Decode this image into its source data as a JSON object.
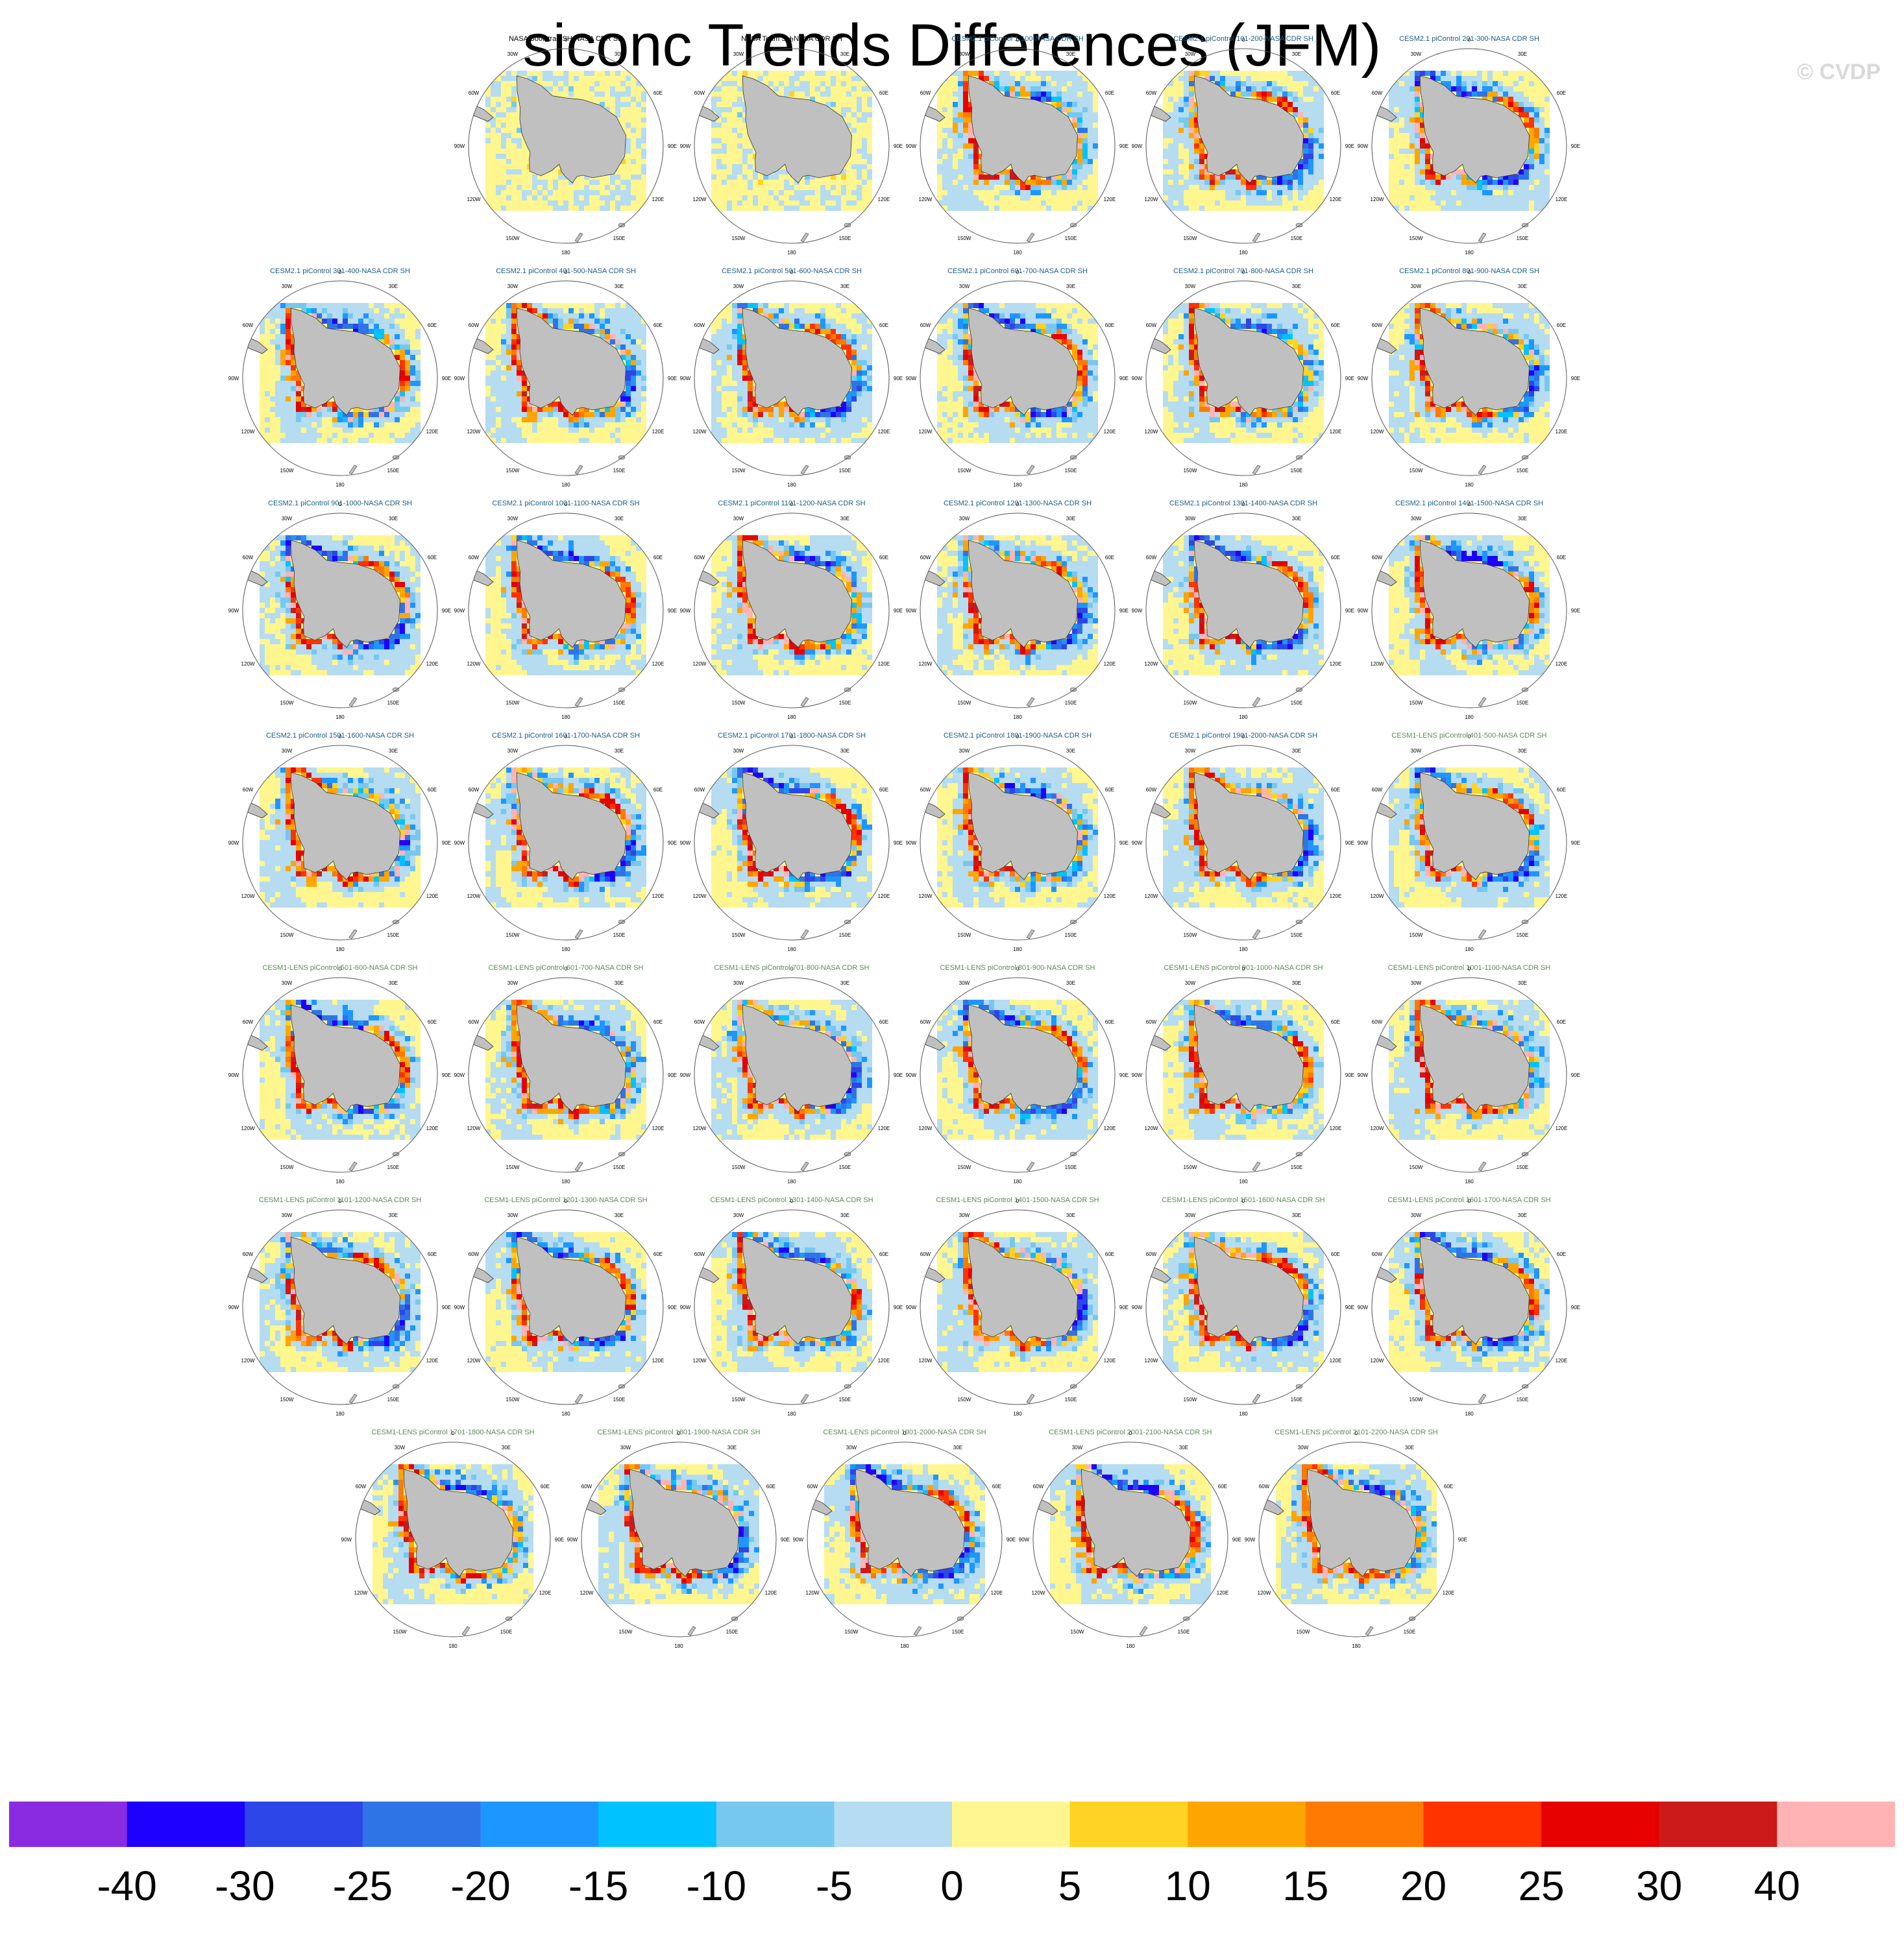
{
  "chart_data": {
    "type": "heatmap",
    "title": "siconc Trends Differences (JFM)",
    "watermark": "© CVDP",
    "map_labels": {
      "lon_ticks": [
        "0",
        "30E",
        "60E",
        "90E",
        "120E",
        "150E",
        "180",
        "150W",
        "120W",
        "90W",
        "60W",
        "30W"
      ]
    },
    "colors": {
      "land": "#c0c0c0",
      "ocean_zero": "#fff68f",
      "title_obs": "#000000",
      "title_cesm2": "#1b5e86",
      "title_cesm1": "#5b8a57"
    },
    "panels": [
      {
        "title": "NASA Bootstrap SH-NASA CDR SH",
        "group": "obs"
      },
      {
        "title": "NASA Team SH-NASA CDR SH",
        "group": "obs"
      },
      {
        "title": "CESM2.1 piControl 1-100-NASA CDR SH",
        "group": "cesm2"
      },
      {
        "title": "CESM2.1 piControl 101-200-NASA CDR SH",
        "group": "cesm2"
      },
      {
        "title": "CESM2.1 piControl 201-300-NASA CDR SH",
        "group": "cesm2"
      },
      {
        "title": "CESM2.1 piControl 301-400-NASA CDR SH",
        "group": "cesm2"
      },
      {
        "title": "CESM2.1 piControl 401-500-NASA CDR SH",
        "group": "cesm2"
      },
      {
        "title": "CESM2.1 piControl 501-600-NASA CDR SH",
        "group": "cesm2"
      },
      {
        "title": "CESM2.1 piControl 601-700-NASA CDR SH",
        "group": "cesm2"
      },
      {
        "title": "CESM2.1 piControl 701-800-NASA CDR SH",
        "group": "cesm2"
      },
      {
        "title": "CESM2.1 piControl 801-900-NASA CDR SH",
        "group": "cesm2"
      },
      {
        "title": "CESM2.1 piControl 901-1000-NASA CDR SH",
        "group": "cesm2"
      },
      {
        "title": "CESM2.1 piControl 1001-1100-NASA CDR SH",
        "group": "cesm2"
      },
      {
        "title": "CESM2.1 piControl 1101-1200-NASA CDR SH",
        "group": "cesm2"
      },
      {
        "title": "CESM2.1 piControl 1201-1300-NASA CDR SH",
        "group": "cesm2"
      },
      {
        "title": "CESM2.1 piControl 1301-1400-NASA CDR SH",
        "group": "cesm2"
      },
      {
        "title": "CESM2.1 piControl 1401-1500-NASA CDR SH",
        "group": "cesm2"
      },
      {
        "title": "CESM2.1 piControl 1501-1600-NASA CDR SH",
        "group": "cesm2"
      },
      {
        "title": "CESM2.1 piControl 1601-1700-NASA CDR SH",
        "group": "cesm2"
      },
      {
        "title": "CESM2.1 piControl 1701-1800-NASA CDR SH",
        "group": "cesm2"
      },
      {
        "title": "CESM2.1 piControl 1801-1900-NASA CDR SH",
        "group": "cesm2"
      },
      {
        "title": "CESM2.1 piControl 1901-2000-NASA CDR SH",
        "group": "cesm2"
      },
      {
        "title": "CESM1-LENS piControl 401-500-NASA CDR SH",
        "group": "cesm1"
      },
      {
        "title": "CESM1-LENS piControl 501-600-NASA CDR SH",
        "group": "cesm1"
      },
      {
        "title": "CESM1-LENS piControl 601-700-NASA CDR SH",
        "group": "cesm1"
      },
      {
        "title": "CESM1-LENS piControl 701-800-NASA CDR SH",
        "group": "cesm1"
      },
      {
        "title": "CESM1-LENS piControl 801-900-NASA CDR SH",
        "group": "cesm1"
      },
      {
        "title": "CESM1-LENS piControl 901-1000-NASA CDR SH",
        "group": "cesm1"
      },
      {
        "title": "CESM1-LENS piControl 1001-1100-NASA CDR SH",
        "group": "cesm1"
      },
      {
        "title": "CESM1-LENS piControl 1101-1200-NASA CDR SH",
        "group": "cesm1"
      },
      {
        "title": "CESM1-LENS piControl 1201-1300-NASA CDR SH",
        "group": "cesm1"
      },
      {
        "title": "CESM1-LENS piControl 1301-1400-NASA CDR SH",
        "group": "cesm1"
      },
      {
        "title": "CESM1-LENS piControl 1401-1500-NASA CDR SH",
        "group": "cesm1"
      },
      {
        "title": "CESM1-LENS piControl 1501-1600-NASA CDR SH",
        "group": "cesm1"
      },
      {
        "title": "CESM1-LENS piControl 1601-1700-NASA CDR SH",
        "group": "cesm1"
      },
      {
        "title": "CESM1-LENS piControl 1701-1800-NASA CDR SH",
        "group": "cesm1"
      },
      {
        "title": "CESM1-LENS piControl 1801-1900-NASA CDR SH",
        "group": "cesm1"
      },
      {
        "title": "CESM1-LENS piControl 1901-2000-NASA CDR SH",
        "group": "cesm1"
      },
      {
        "title": "CESM1-LENS piControl 2001-2100-NASA CDR SH",
        "group": "cesm1"
      },
      {
        "title": "CESM1-LENS piControl 2101-2200-NASA CDR SH",
        "group": "cesm1"
      }
    ],
    "colorbar": {
      "colors": [
        "#8a2be2",
        "#1e00ff",
        "#2d46e8",
        "#2f74e6",
        "#1e96ff",
        "#00c2ff",
        "#77c8f0",
        "#b5dcf0",
        "#fff68f",
        "#ffd224",
        "#ffa500",
        "#ff7a00",
        "#ff3300",
        "#e60000",
        "#cc1a1a",
        "#ffb3b3"
      ],
      "labels": [
        "-40",
        "-30",
        "-25",
        "-20",
        "-15",
        "-10",
        "-5",
        "0",
        "5",
        "10",
        "15",
        "20",
        "25",
        "30",
        "40"
      ]
    }
  }
}
